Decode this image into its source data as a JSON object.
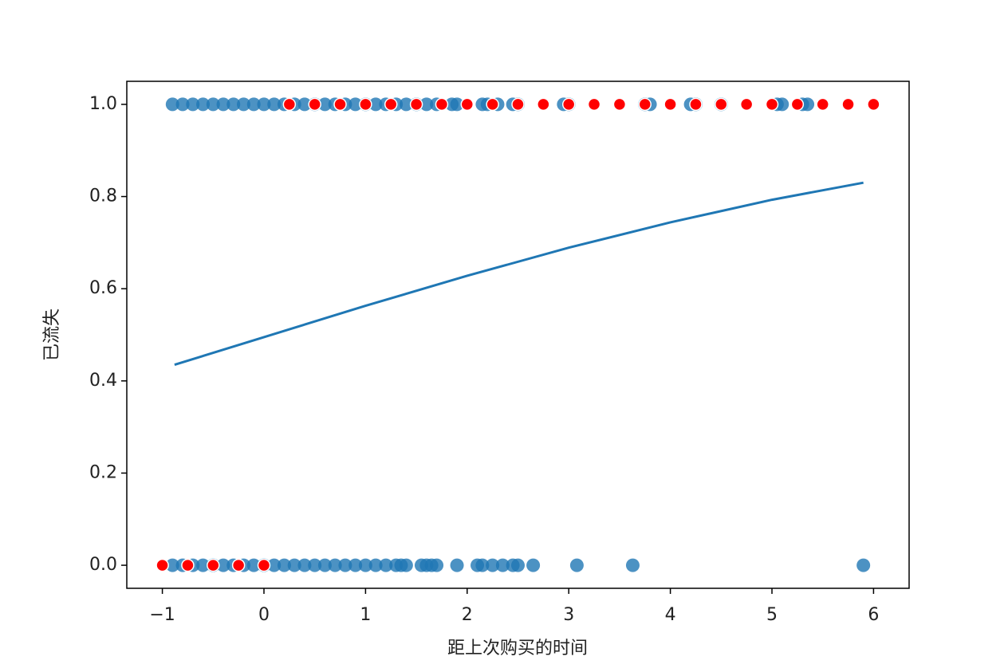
{
  "chart_data": {
    "type": "scatter",
    "xlabel": "距上次购买的时间",
    "ylabel": "已流失",
    "xlim": [
      -1.35,
      6.35
    ],
    "ylim": [
      -0.05,
      1.05
    ],
    "xticks": [
      {
        "value": -1,
        "label": "−1"
      },
      0,
      1,
      2,
      3,
      4,
      5,
      6
    ],
    "yticks": [
      {
        "value": 0,
        "label": "0.0"
      },
      {
        "value": 0.2,
        "label": "0.2"
      },
      {
        "value": 0.4,
        "label": "0.4"
      },
      {
        "value": 0.6,
        "label": "0.6"
      },
      {
        "value": 0.8,
        "label": "0.8"
      },
      {
        "value": 1,
        "label": "1.0"
      }
    ],
    "series": [
      {
        "color": "#1f77b4",
        "x": [
          -0.9,
          -0.8,
          -0.7,
          -0.6,
          -0.5,
          -0.4,
          -0.3,
          -0.2,
          -0.1,
          0,
          0.1,
          0.2,
          0.3,
          0.4,
          0.5,
          0.6,
          0.7,
          0.8,
          0.9,
          1,
          1.1,
          1.2,
          1.3,
          1.4,
          1.5,
          1.6,
          1.7,
          1.85,
          1.9,
          2.15,
          2.2,
          2.3,
          2.45,
          2.5,
          2.95,
          3,
          3.75,
          3.8,
          4.2,
          4.25,
          4.5,
          5.05,
          5.1,
          5.3,
          5.35
        ],
        "y": [
          1,
          1,
          1,
          1,
          1,
          1,
          1,
          1,
          1,
          1,
          1,
          1,
          1,
          1,
          1,
          1,
          1,
          1,
          1,
          1,
          1,
          1,
          1,
          1,
          1,
          1,
          1,
          1,
          1,
          1,
          1,
          1,
          1,
          1,
          1,
          1,
          1,
          1,
          1,
          1,
          1,
          1,
          1,
          1,
          1
        ]
      },
      {
        "color": "#1f77b4",
        "x": [
          -0.9,
          -0.8,
          -0.7,
          -0.6,
          -0.5,
          -0.4,
          -0.3,
          -0.2,
          -0.1,
          0,
          0.1,
          0.2,
          0.3,
          0.4,
          0.5,
          0.6,
          0.7,
          0.8,
          0.9,
          1,
          1.1,
          1.2,
          1.3,
          1.35,
          1.4,
          1.55,
          1.6,
          1.65,
          1.7,
          1.9,
          2.1,
          2.15,
          2.25,
          2.35,
          2.45,
          2.5,
          2.65,
          3.08,
          3.63,
          5.9
        ],
        "y": [
          0,
          0,
          0,
          0,
          0,
          0,
          0,
          0,
          0,
          0,
          0,
          0,
          0,
          0,
          0,
          0,
          0,
          0,
          0,
          0,
          0,
          0,
          0,
          0,
          0,
          0,
          0,
          0,
          0,
          0,
          0,
          0,
          0,
          0,
          0,
          0,
          0,
          0,
          0,
          0
        ]
      },
      {
        "color": "#ff0000",
        "x": [
          -1,
          -0.75,
          -0.5,
          -0.25,
          0,
          0.25,
          0.5,
          0.75,
          1,
          1.25,
          1.5,
          1.75,
          2,
          2.25,
          2.5,
          2.75,
          3,
          3.25,
          3.5,
          3.75,
          4,
          4.25,
          4.5,
          4.75,
          5,
          5.25,
          5.5,
          5.75,
          6
        ],
        "y": [
          0,
          0,
          0,
          0,
          0,
          1,
          1,
          1,
          1,
          1,
          1,
          1,
          1,
          1,
          1,
          1,
          1,
          1,
          1,
          1,
          1,
          1,
          1,
          1,
          1,
          1,
          1,
          1,
          1
        ]
      }
    ],
    "fit_line": {
      "color": "#1f77b4",
      "x": [
        -0.88,
        0,
        1,
        2,
        3,
        4,
        5,
        5.9
      ],
      "y": [
        0.435,
        0.495,
        0.563,
        0.628,
        0.689,
        0.744,
        0.793,
        0.83
      ]
    }
  }
}
